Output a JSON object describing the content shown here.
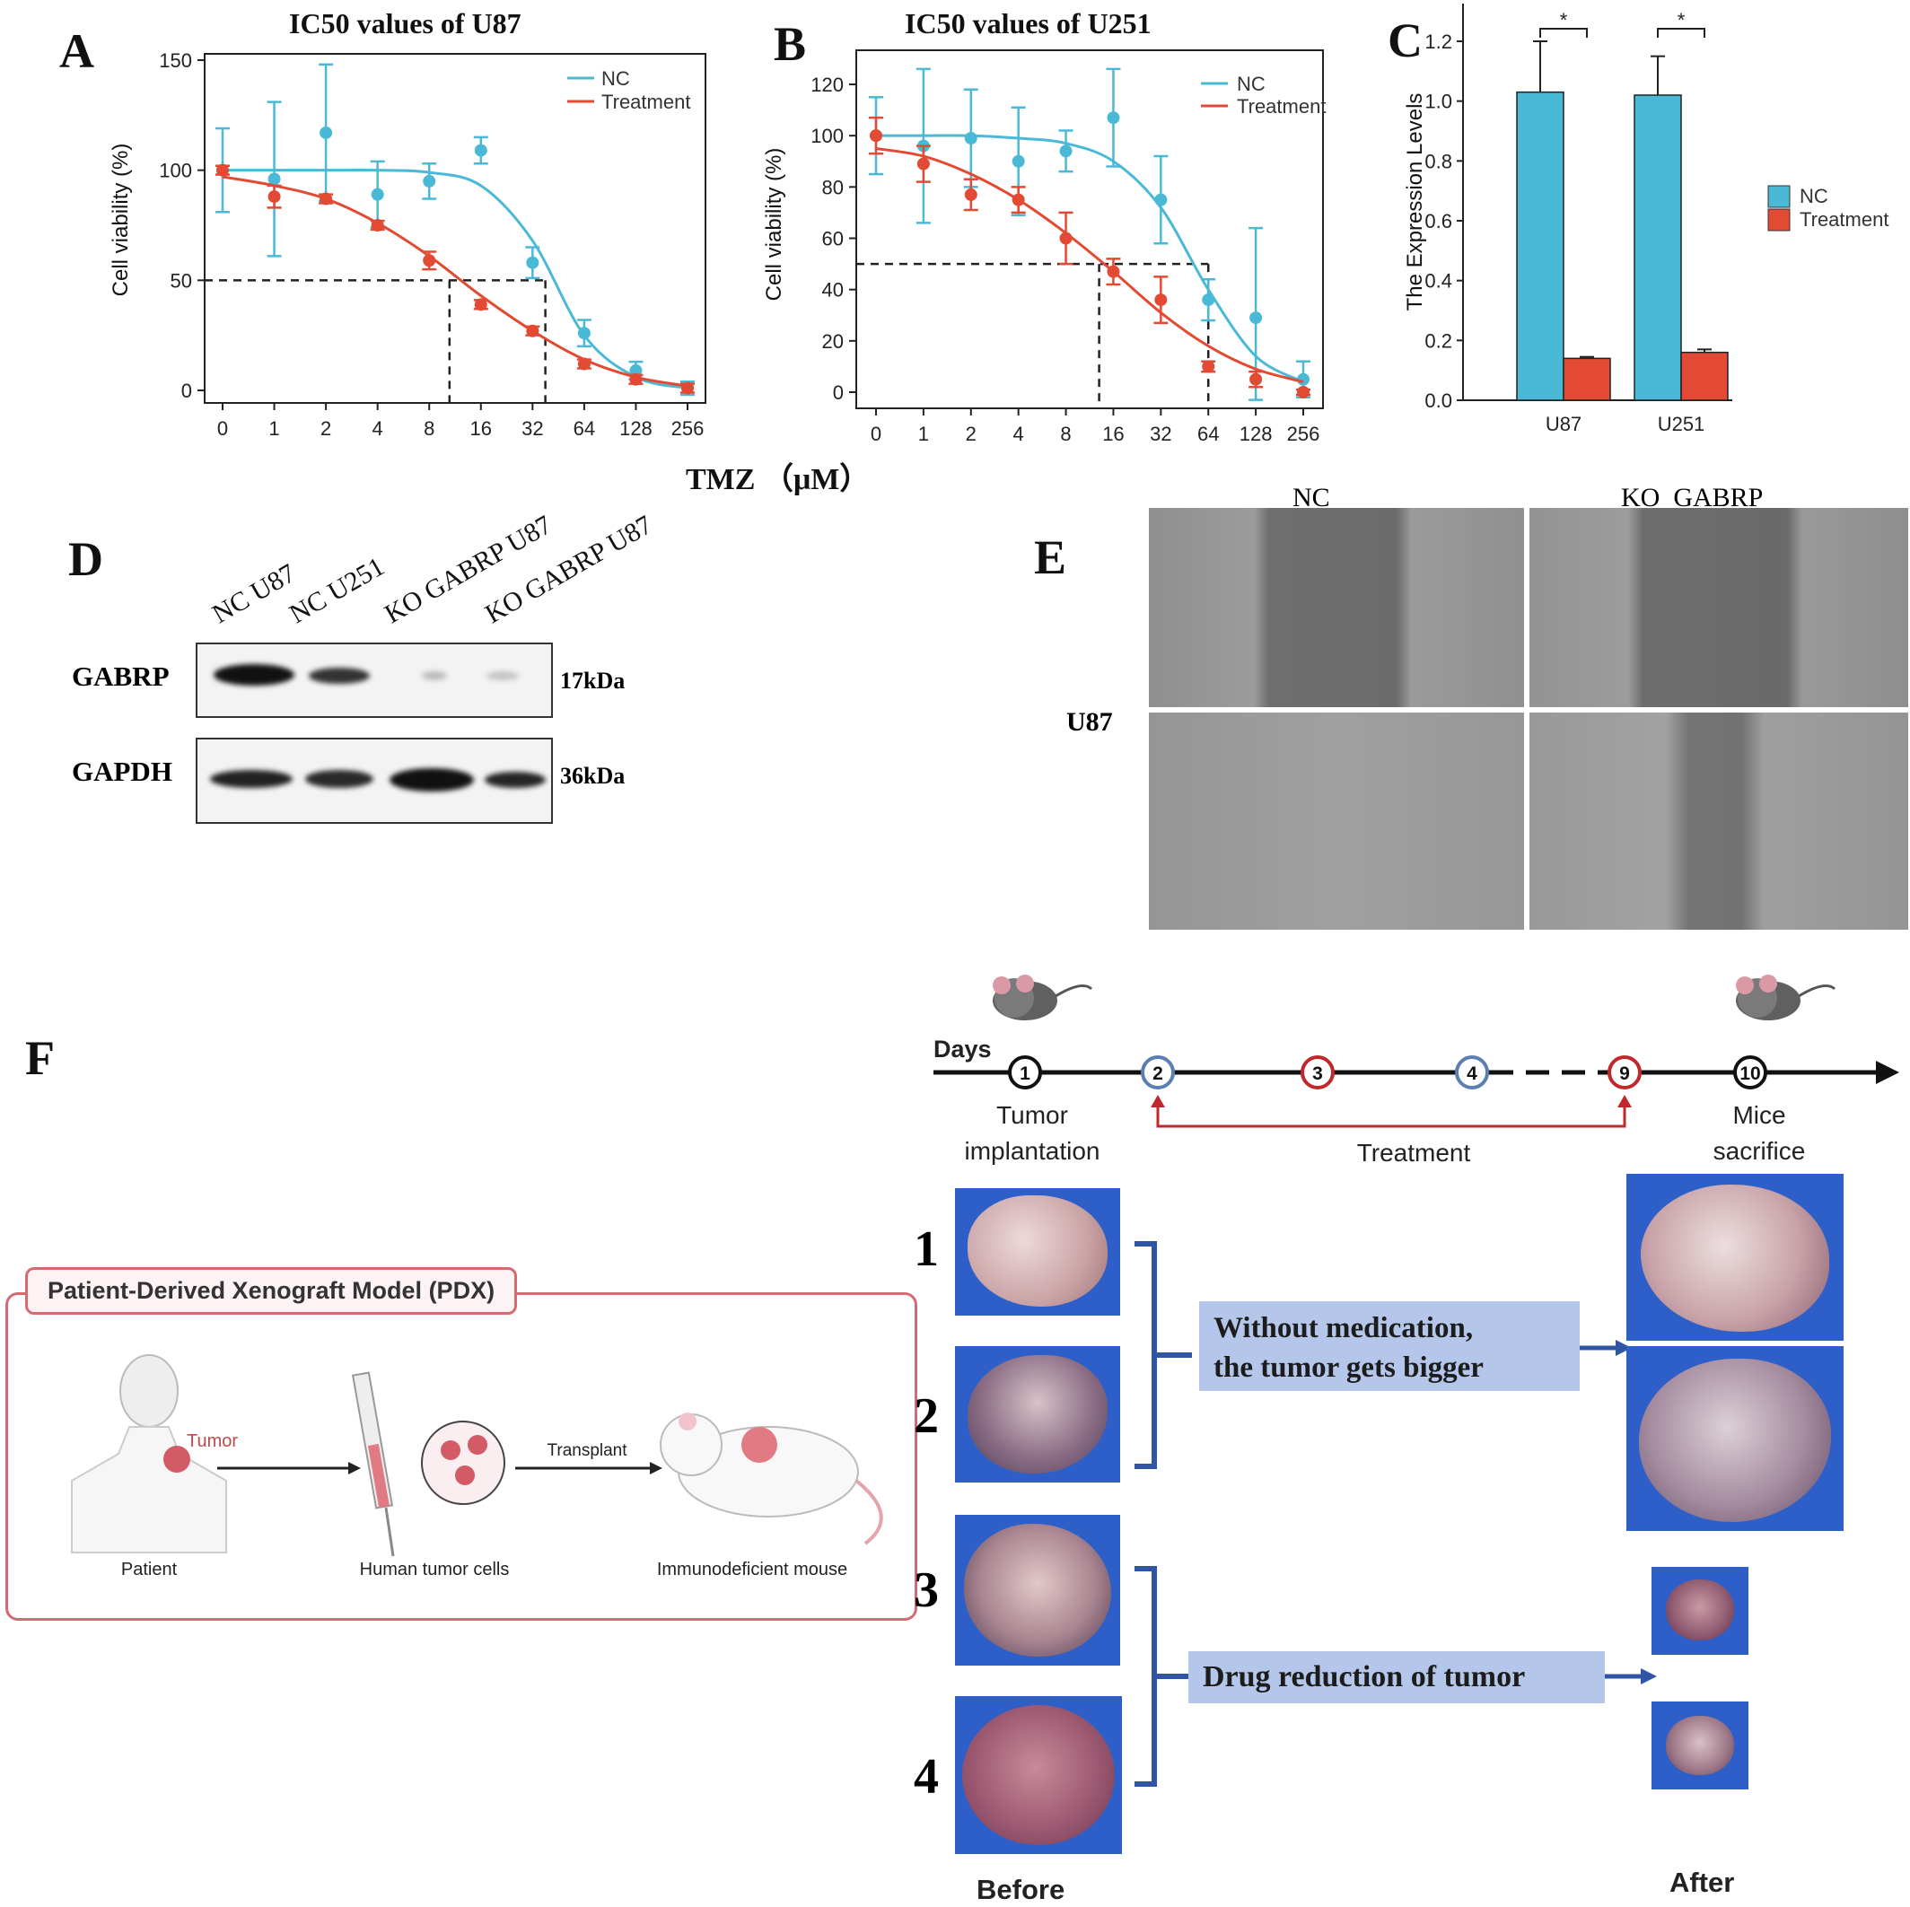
{
  "figure": {
    "A": {
      "letter": "A",
      "title": "IC50 values of U87",
      "ylabel": "Cell viability (%)",
      "legend": [
        "NC",
        "Treatment"
      ]
    },
    "B": {
      "letter": "B",
      "title": "IC50 values of U251",
      "ylabel": "Cell viability (%)",
      "legend": [
        "NC",
        "Treatment"
      ]
    },
    "shared_xlabel": "TMZ （μM）",
    "C": {
      "letter": "C",
      "ylabel": "The Expression Levels",
      "legend": [
        "NC",
        "Treatment"
      ],
      "sig": "*"
    },
    "D": {
      "letter": "D",
      "lanes": [
        "NC  U87",
        "NC  U251",
        "KO  GABRP U87",
        "KO  GABRP U87"
      ],
      "rows": [
        {
          "protein": "GABRP",
          "size": "17kDa"
        },
        {
          "protein": "GAPDH",
          "size": "36kDa"
        }
      ]
    },
    "E": {
      "letter": "E",
      "col_labels": [
        "NC",
        "KO  GABRP"
      ],
      "row_label": "U87"
    },
    "F": {
      "letter": "F",
      "timeline": {
        "days_label": "Days",
        "nodes": [
          "1",
          "2",
          "3",
          "4",
          "9",
          "10"
        ],
        "start_label": [
          "Tumor",
          "implantation"
        ],
        "treatment_label": "Treatment",
        "end_label": [
          "Mice",
          "sacrifice"
        ]
      },
      "pdx": {
        "title": "Patient-Derived Xenograft Model (PDX)",
        "tumor_label": "Tumor",
        "transplant_label": "Transplant",
        "captions": [
          "Patient",
          "Human tumor cells",
          "Immunodeficient mouse"
        ]
      },
      "sample_numbers": [
        "1",
        "2",
        "3",
        "4"
      ],
      "callout_1": [
        "Without medication,",
        "the tumor gets bigger"
      ],
      "callout_2": "Drug reduction of tumor",
      "before_label": "Before",
      "after_label": "After"
    }
  },
  "colors": {
    "nc": "#4ab9d6",
    "treatment": "#e34a33",
    "pdx_border": "#d56a73",
    "bracket": "#2f55a4",
    "callout_bg": "#b4c6ea",
    "timeline_red": "#c0282c"
  },
  "chart_data": [
    {
      "type": "line",
      "title": "IC50 values of U87",
      "xlabel": "TMZ （μM）",
      "ylabel": "Cell viability (%)",
      "categories": [
        "0",
        "1",
        "2",
        "4",
        "8",
        "16",
        "32",
        "64",
        "128",
        "256"
      ],
      "ylim": [
        0,
        150
      ],
      "yticks": [
        0,
        50,
        100,
        150
      ],
      "series": [
        {
          "name": "NC",
          "values": [
            100,
            96,
            117,
            89,
            95,
            109,
            58,
            26,
            9,
            1
          ],
          "err": [
            19,
            35,
            31,
            15,
            8,
            6,
            7,
            6,
            4,
            3
          ],
          "fit": [
            100,
            100,
            100,
            100,
            99,
            93,
            68,
            25,
            6,
            1
          ]
        },
        {
          "name": "Treatment",
          "values": [
            100,
            88,
            87,
            75,
            59,
            39,
            27,
            12,
            5,
            1
          ],
          "err": [
            2,
            5,
            2,
            2,
            4,
            2,
            2,
            2,
            2,
            2
          ],
          "fit": [
            97,
            93,
            87,
            76,
            61,
            43,
            27,
            14,
            6,
            2
          ]
        }
      ],
      "ic50_guides": {
        "y": 50,
        "x": [
          10.5,
          38
        ]
      },
      "legend": "top-right",
      "grid": false
    },
    {
      "type": "line",
      "title": "IC50 values of U251",
      "xlabel": "TMZ （μM）",
      "ylabel": "Cell viability (%)",
      "categories": [
        "0",
        "1",
        "2",
        "4",
        "8",
        "16",
        "32",
        "64",
        "128",
        "256"
      ],
      "ylim": [
        0,
        120
      ],
      "yticks": [
        0,
        20,
        40,
        60,
        80,
        100,
        120
      ],
      "series": [
        {
          "name": "NC",
          "values": [
            100,
            96,
            99,
            90,
            94,
            107,
            75,
            36,
            29,
            5
          ],
          "err": [
            15,
            30,
            19,
            21,
            8,
            19,
            17,
            8,
            35,
            7
          ],
          "fit": [
            100,
            100,
            100,
            99,
            97,
            90,
            72,
            40,
            14,
            4
          ]
        },
        {
          "name": "Treatment",
          "values": [
            100,
            89,
            77,
            75,
            60,
            47,
            36,
            10,
            5,
            0
          ],
          "err": [
            7,
            7,
            6,
            5,
            10,
            5,
            9,
            2,
            3,
            1
          ],
          "fit": [
            95,
            92,
            85,
            75,
            62,
            47,
            31,
            18,
            9,
            4
          ]
        }
      ],
      "ic50_guides": {
        "y": 50,
        "x": [
          13,
          64
        ]
      },
      "legend": "top-right",
      "grid": false
    },
    {
      "type": "bar",
      "xlabel": "",
      "ylabel": "The Expression Levels",
      "categories": [
        "U87",
        "U251"
      ],
      "ylim": [
        0,
        1.2
      ],
      "yticks": [
        0.0,
        0.2,
        0.4,
        0.6,
        0.8,
        1.0,
        1.2
      ],
      "series": [
        {
          "name": "NC",
          "values": [
            1.03,
            1.02
          ],
          "err": [
            0.17,
            0.13
          ]
        },
        {
          "name": "Treatment",
          "values": [
            0.14,
            0.16
          ],
          "err": [
            0.005,
            0.01
          ]
        }
      ],
      "significance": [
        "*",
        "*"
      ],
      "legend": "right",
      "grid": false
    }
  ]
}
